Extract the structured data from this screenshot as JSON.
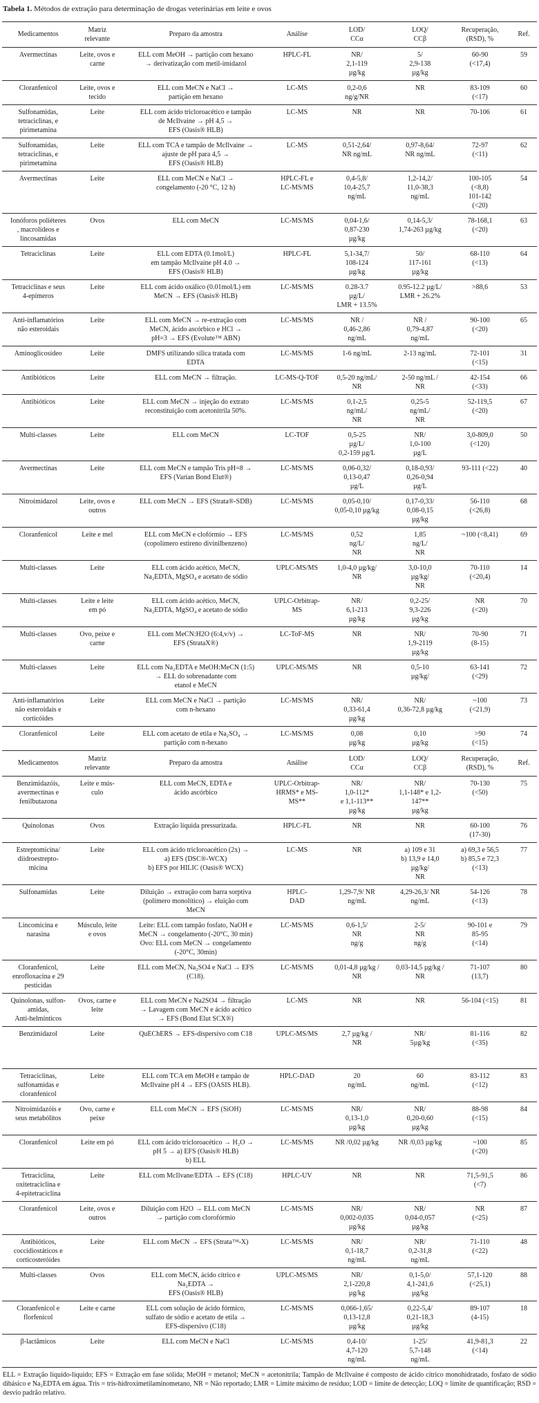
{
  "title": {
    "label": "Tabela 1.",
    "text": " Métodos de extração para determinação de drogas veterinárias em leite e ovos"
  },
  "table": {
    "column_headers": [
      "Medicamentos",
      "Matriz\nrelevante",
      "Preparo da amostra",
      "Análise",
      "LOD/\nCCα",
      "LOQ/\nCCβ",
      "Recuperação,\n(RSD), %",
      "Ref."
    ],
    "column_widths_pct": [
      13.5,
      8.6,
      28.2,
      9.7,
      12.7,
      10.9,
      11.5,
      4.9
    ],
    "header_repeat_after_row": 22,
    "rows": [
      [
        "Avermectinas",
        "Leite, ovos e\ncarne",
        "ELL com MeOH → partição com hexano\n→ derivatização com metil-imidazol",
        "HPLC-FL",
        "NR/\n2,1-119\nµg/kg",
        "5/\n2,9-138\nµg/kg",
        "60-90\n(<17,4)",
        "59"
      ],
      [
        "Cloranfenicol",
        "Leite, ovos e\ntecido",
        "ELL com MeCN e NaCl →\npartição em hexano",
        "LC-MS",
        "0,2-0,6\nng/g/NR",
        "NR",
        "83-109\n(<17)",
        "60"
      ],
      [
        "Sulfonamidas,\ntetraciclinas, e\npirimetamina",
        "Leite",
        "ELL com ácido tricloroacético e tampão\nde McIlvaine → pH 4,5 →\nEFS (Oasis® HLB)",
        "LC-MS",
        "NR",
        "NR",
        "70-106",
        "61"
      ],
      [
        "Sulfonamidas,\ntetraciclinas, e\npirimetamina",
        "Leite",
        "ELL com TCA e tampão de McIlvaine →\najuste de pH para 4,5 →\nEFS (Oasis® HLB)",
        "LC-MS",
        "0,51-2,64/\nNR ng/mL",
        "0,97-8,64/\nNR ng/mL",
        "72-97\n(<11)",
        "62"
      ],
      [
        "Avermectinas",
        "Leite",
        "ELL com MeCN e NaCl →\ncongelamento (-20 °C, 12 h)",
        "HPLC-FL e\nLC-MS/MS",
        "0,4-5,8/\n10,4-25,7\nng/mL",
        "1,2-14,2/\n11,0-38,3\nng/mL",
        "100-105\n(<8,8)\n101-142\n(<20)",
        "54"
      ],
      [
        "Ionóforos poliéteres\n, macrolídeos e\nlincosamidas",
        "Ovos",
        "ELL com MeCN",
        "LC-MS/MS",
        "0,04-1,6/\n0,87-230\nµg/kg",
        "0,14-5,3/\n1,74-263 µg/kg",
        "78-168,1\n(<20)",
        "63"
      ],
      [
        "Tetraciclinas",
        "Leite",
        "ELL com EDTA (0.1mol/L)\nem tampão McIlvaine pH 4.0 →\nEFS (Oasis® HLB)",
        "HPLC-FL",
        "5,1-34,7/\n108-124\nµg/kg",
        "50/\n117-161\nµg/kg",
        "68-110\n(<13)",
        "64"
      ],
      [
        "Tetraciclinas e seus\n4-epímeros",
        "Leite",
        "ELL com ácido oxálico (0.01mol/L) em\nMeCN → EFS (Oasis® HLB)",
        "LC-MS/MS",
        "0.28-3.7\nµg/L/\nLMR + 13.5%",
        "0.95-12.2 µg/L/\nLMR + 26.2%",
        ">88,6",
        "53"
      ],
      [
        "Anti-inflamatórios\nnão esteroidais",
        "Leite",
        "ELL com MeCN → re-extração com\nMeCN, ácido ascórbico e HCl →\npH=3 → EFS (Evolute™ ABN)",
        "LC-MS/MS",
        "NR /\n0,46-2,86\nng/mL",
        "NR /\n0,79-4,87\nng/mL",
        "90-100\n(<20)",
        "65"
      ],
      [
        "Aminoglicosídeo",
        "Leite",
        "DMFS utilizando sílica tratada com\nEDTA",
        "LC-MS/MS",
        "1-6 ng/mL",
        "2-13 ng/mL",
        "72-101\n(<15)",
        "31"
      ],
      [
        "Antibióticos",
        "Leite",
        "ELL com MeCN → filtração.",
        "LC-MS-Q-TOF",
        "0,5-20 ng/mL/\nNR",
        "2-50 ng/mL /\nNR",
        "42-154\n(<33)",
        "66"
      ],
      [
        "Antibióticos",
        "Leite",
        "ELL com MeCN → injeção do extrato\nreconstituição com acetonitrila 50%.",
        "LC-MS/MS",
        "0,1-2,5\nng/mL/\nNR",
        "0,25-5\nng/mL/\nNR",
        "52-119,5\n(<20)",
        "67"
      ],
      [
        "Multi-classes",
        "Leite",
        "ELL com MeCN",
        "LC-TOF",
        "0,5-25\nµg/L/\n0,2-159 µg/L",
        "NR/\n1,0-100\nµg/L",
        "3,0-809,0\n(<120)",
        "50"
      ],
      [
        "Avermectinas",
        "Leite",
        "ELL com MeCN e tampão Tris pH=8 →\nEFS (Varian Bond Elut®)",
        "LC-MS/MS",
        "0,06-0,32/\n0,13-0,47\nµg/L",
        "0,18-0,93/\n0,26-0,94\nµg/L",
        "93-111 (<22)",
        "40"
      ],
      [
        "Nitroimidazol",
        "Leite, ovos e\noutros",
        "ELL com MeCN → EFS (Strata®-SDB)",
        "LC-MS/MS",
        "0,05-0,10/\n0,05-0,10 µg/kg",
        "0,17-0,33/\n0,08-0,15\nµg/kg",
        "56-110\n(<26,8)",
        "68"
      ],
      [
        "Cloranfenicol",
        "Leite e mel",
        "ELL com MeCN e clofórmio → EFS\n(copolímero estireno divinilbenzeno)",
        "LC-MS/MS",
        "0,52\nng/L/\nNR",
        "1,85\nng/L/\nNR",
        "~100 (<8,41)",
        "69"
      ],
      [
        "Multi-classes",
        "Leite",
        "ELL com ácido acético, MeCN,\nNa₂EDTA, MgSO₄ e acetato de sódio",
        "UPLC-MS/MS",
        "1,0-4,0 µg/kg/\nNR",
        "3,0-10,0\nµg/kg/\nNR",
        "70-110\n(<20,4)",
        "14"
      ],
      [
        "Multi-classes",
        "Leite e leite\nem pó",
        "ELL com ácido acético, MeCN,\nNa₂EDTA, MgSO₄ e acetato de sódio",
        "UPLC-Orbitrap-\nMS",
        "NR/\n6,1-213\nµg/kg",
        "0,2-25/\n9,3-226\nµg/kg",
        "NR\n(<20)",
        "70"
      ],
      [
        "Multi-classes",
        "Ovo, peixe e\ncarne",
        "ELL com MeCN:H2O (6:4,v/v) →\nEFS (StrataX®)",
        "LC-ToF-MS",
        "NR",
        "NR/\n1,9-2119\nµg/kg",
        "70-90\n(8-15)",
        "71"
      ],
      [
        "Multi-classes",
        "Leite",
        "ELL com Na₂EDTA e MeOH:MeCN (1:5)\n→ ELL do sobrenadante com\netanol e MeCN",
        "UPLC-MS/MS",
        "NR",
        "0,5-10\nµg/kg/",
        "63-141\n(<29)",
        "72"
      ],
      [
        "Anti-inflamatórios\nnão esteroidais e\ncorticóides",
        "Leite",
        "ELL com MeCN e NaCl → partição\ncom n-hexano",
        "LC-MS/MS",
        "NR/\n0,33-61,4\nµg/kg",
        "NR/\n0,36-72,8 µg/kg",
        "~100\n(<21,9)",
        "73"
      ],
      [
        "Cloranfenicol",
        "Leite",
        "ELL com acetato de etila e Na₂SO₄ →\npartição com n-hexano",
        "LC-MS/MS",
        "0,08\nµg/kg",
        "0,10\nµg/kg",
        ">90\n(<15)",
        "74"
      ],
      [
        "Benzimidazóis,\navermectinas e\nfenilbutazona",
        "Leite e mús-\nculo",
        "ELL com MeCN, EDTA e\nácido ascórbico",
        "UPLC-Orbitrap-\nHRMS* e MS-\nMS**",
        "NR/\n1,0-112*\ne 1,1-113**\nµg/kg",
        "NR/\n1,1-148* e 1,2-\n147**\nµg/kg",
        "70-130\n(<50)",
        "75"
      ],
      [
        "Quinolonas",
        "Ovos",
        "Extração líquida pressurizada.",
        "HPLC-FL",
        "NR",
        "NR",
        "60-100\n(17-30)",
        "76"
      ],
      [
        "Estreptomicina/\ndiidroestrepto-\nmicina",
        "Leite",
        "ELL com ácido tricloroacético (2x) →\na) EFS (DSC®-WCX)\nb) EFS por HILIC (Oasis® WCX)",
        "LC-MS",
        "NR",
        "a) 109 e 31\nb) 13,9 e 14,0\nµg/kg/\nNR",
        "a) 69,3 e 56,5\nb) 85,5 e 72,3\n(<13)",
        "77"
      ],
      [
        "Sulfonamidas",
        "Leite",
        "Diluição → extração com barra sorptiva\n(polímero monolítico) → eluição com\nMeCN",
        "HPLC-\nDAD",
        "1,29-7,9/ NR\nng/mL",
        "4,29-26,3/ NR\nng/mL",
        "54-126\n(<13)",
        "78"
      ],
      [
        "Lincomicina e\nnarasina",
        "Músculo, leite\ne ovos",
        "Leite: ELL com tampão fosfato, NaOH e\nMeCN → congelamento (-20°C, 30 min)\nOvo: ELL com MeCN → congelamento\n(-20°C, 30min)",
        "LC-MS/MS",
        "0,6-1,5/\nNR\nng/g",
        "2-5/\nNR\nng/g",
        "90-101 e\n85-95\n(<14)",
        "79"
      ],
      [
        "Cloranfenicol,\nenrofloxacina e 29\npesticidas",
        "Leite",
        "ELL com MeCN, Na₂SO4 e NaCl → EFS\n(C18).",
        "LC-MS/MS",
        "0,01-4,8 µg/kg /\nNR",
        "0,03-14,5 µg/kg /\nNR",
        "71-107\n(13,7)",
        "80"
      ],
      [
        "Quinolonas, sulfon-\namidas,\nAnti-helmínticos",
        "Ovos, carne e\nleite",
        "ELL com MeCN e Na2SO4 → filtração\n→ Lavagem com MeCN e ácido acético\n→ EFS (Bond Elut SCX®)",
        "LC-MS",
        "NR",
        "NR",
        "56-104 (<15)",
        "81"
      ],
      [
        "Benzimidazol",
        "Leite",
        "QuEChERS → EFS-dispersivo com C18",
        "UPLC-MS/MS",
        "2,7 µg/kg /\nNR",
        "NR/\n5µg/kg",
        "81-116\n(<35)",
        "82"
      ],
      [
        "Tetraciclinas,\nsulfonamidas e\ncloranfenicol",
        "Leite",
        "ELL com TCA em MeOH e tampão de\nMcIlvaine pH 4 → EFS (OASIS HLB).",
        "HPLC-DAD",
        "20\nng/mL",
        "60\nng/mL",
        "83-112\n(<12)",
        "83"
      ],
      [
        "Nitroimidazóis e\nseus metabólitos",
        "Ovo, carne e\npeixe",
        "ELL com MeCN → EFS (SiOH)",
        "LC-MS/MS",
        "NR/\n0,13-1,0\nµg/kg",
        "NR/\n0,20-0,60\nµg/kg",
        "88-98\n(<15)",
        "84"
      ],
      [
        "Cloranfenicol",
        "Leite em pó",
        "ELL com ácido tricloroacético → H₂O →\npH 5 → a) EFS (Oasis® HLB)\nb) ELL",
        "LC-MS/MS",
        "NR /0,02 µg/kg",
        "NR /0,03 µg/kg",
        "~100\n(<20)",
        "85"
      ],
      [
        "Tetraciclina,\noxitetraciclina e\n4-epitetraciclina",
        "Leite",
        "ELL com McIlvane/EDTA → EFS (C18)",
        "HPLC-UV",
        "NR",
        "NR",
        "71,5-91,5\n(<7)",
        "86"
      ],
      [
        "Cloranfenicol",
        "Leite, ovos e\noutros",
        "Diluição com H2O → ELL com MeCN\n→ partição com clorofórmio",
        "LC-MS/MS",
        "NR/\n0,002-0,035\nµg/kg",
        "NR/\n0,04-0,057\nµg/kg",
        "NR\n(<25)",
        "87"
      ],
      [
        "Antibióticos,\ncoccidiostáticos e\ncorticosteróides",
        "Leite",
        "ELL com MeCN → EFS (Strata™-X)",
        "LC-MS/MS",
        "NR/\n0,1-18,7\nng/mL",
        "NR/\n0,2-31,8\nng/mL",
        "71-110\n(<22)",
        "48"
      ],
      [
        "Multi-classes",
        "Ovos",
        "ELL com MeCN, ácido cítrico e\nNa₂EDTA →\nEFS (Oasis® HLB)",
        "UPLC-MS/MS",
        "NR/\n2,1-220,8\nµg/kg",
        "0,1-5,0/\n4,1-241,6\nµg/kg",
        "57,1-120\n(<25,1)",
        "88"
      ],
      [
        "Cloranfenicol e\nflorfenicol",
        "Leite e carne",
        "ELL com solução de ácido fórmico,\nsulfato de sódio e acetato de etila →\nEFS-dispersivo (C18)",
        "LC-MS/MS",
        "0,066-1,65/\n0,13-12,8\nµg/kg",
        "0,22-5,4/\n0,21-18,3\nµg/kg",
        "89-107\n(4-15)",
        "18"
      ],
      [
        "β-lactâmicos",
        "Leite",
        "ELL com MeCN e NaCl",
        "LC-MS/MS",
        "0,4-10/\n4,7-120\nng/mL",
        "1-25/\n5,7-148\nng/mL",
        "41,9-81,3\n(<14)",
        "22"
      ]
    ]
  },
  "footnote": "ELL = Extração líquido-líquido; EFS = Extração em fase sólida; MeOH = metanol; MeCN = acetonitrila; Tampão de McIlvaine é composto de ácido cítrico monohidratado, fosfato de sódio dibásico e Na₂EDTA em água. Tris = tris-hidroximetilaminometano, NR = Não reportado; LMR = Limite máximo de resíduo; LOD = limite de detecção; LOQ = limite de quantificação; RSD = desvio padrão relativo."
}
